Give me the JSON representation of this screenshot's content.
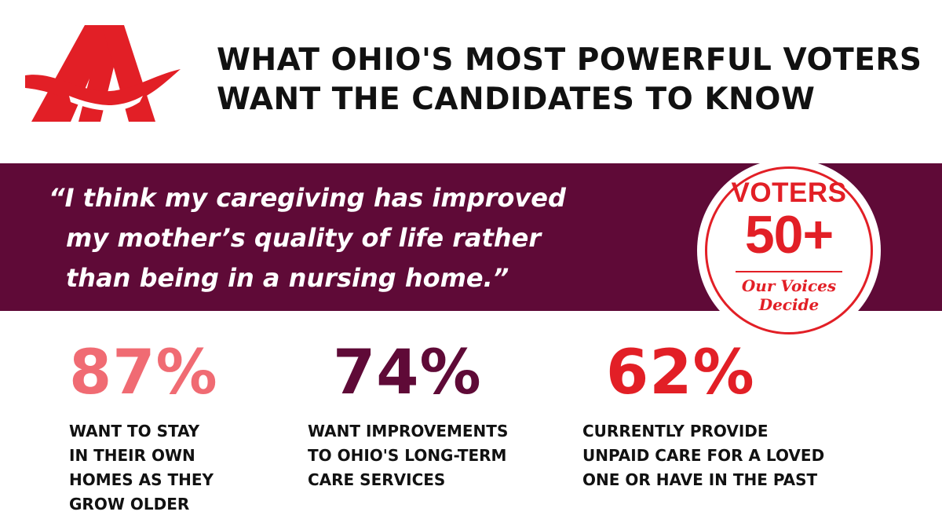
{
  "header": {
    "headline_line1": "WHAT OHIO'S MOST POWERFUL VOTERS",
    "headline_line2": "WANT THE CANDIDATES TO KNOW"
  },
  "quote": {
    "line1": "“I think my caregiving has improved",
    "line2": "my mother’s quality of life rather",
    "line3": "than being in a nursing home.”"
  },
  "badge": {
    "voters": "VOTERS",
    "age": "50+",
    "tagline_line1": "Our Voices",
    "tagline_line2": "Decide"
  },
  "stats": [
    {
      "value": "87%",
      "color": "#f06b73",
      "label_lines": [
        "WANT TO STAY",
        "IN THEIR OWN",
        "HOMES AS THEY",
        "GROW OLDER"
      ]
    },
    {
      "value": "74%",
      "color": "#5f0a37",
      "label_lines": [
        "WANT IMPROVEMENTS",
        "TO OHIO'S LONG-TERM",
        "CARE SERVICES"
      ]
    },
    {
      "value": "62%",
      "color": "#e21f26",
      "label_lines": [
        "CURRENTLY PROVIDE",
        "UNPAID CARE FOR A LOVED",
        "ONE OR HAVE IN THE PAST"
      ]
    }
  ],
  "colors": {
    "brand_red": "#e21f26",
    "plum": "#5f0a37",
    "salmon": "#f06b73"
  },
  "icons": {
    "logo": "aarp-a-logo-icon"
  }
}
